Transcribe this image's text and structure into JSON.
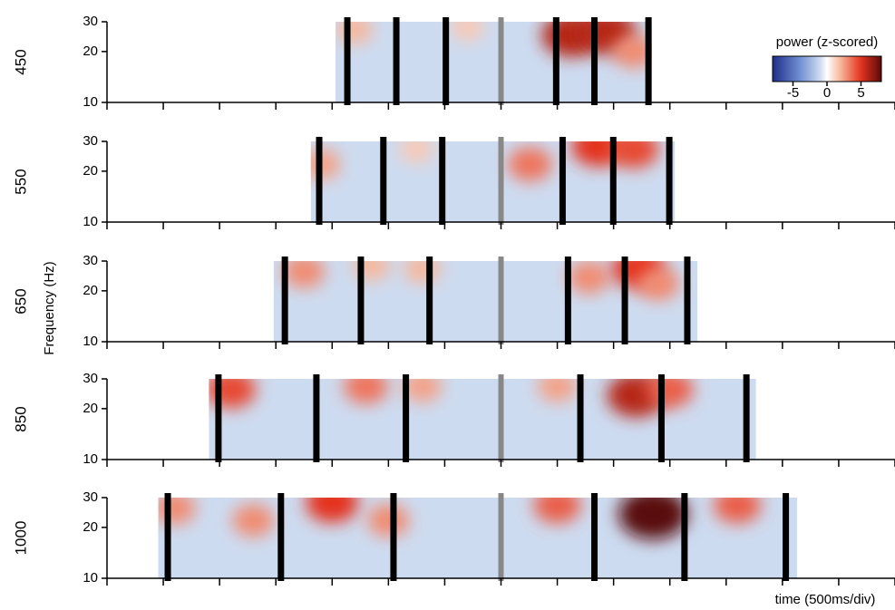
{
  "chart_data": {
    "type": "heatmap",
    "x_label": "time (500ms/div)",
    "y_label": "Frequency (Hz)",
    "colorbar_label": "power (z-scored)",
    "xlim": [
      -3500,
      3500
    ],
    "xticks": [
      -3500,
      -3000,
      -2500,
      -2000,
      -1500,
      -1000,
      -500,
      0,
      500,
      1000,
      1500,
      2000,
      2500,
      3000,
      3500
    ],
    "log_y": true,
    "clim": [
      -8,
      8
    ],
    "cticks": [
      -5,
      0,
      5
    ],
    "panels": [
      {
        "label": "450",
        "ylim": [
          10,
          30
        ],
        "yticks": [
          10,
          20,
          30
        ],
        "extent": [
          -1470,
          1340
        ],
        "center": 0,
        "markers": [
          -1365,
          -930,
          -490,
          490,
          830,
          1310
        ],
        "background_z": -1,
        "hotspots": [
          {
            "x": -1300,
            "y": 27,
            "z": 2
          },
          {
            "x": -300,
            "y": 28,
            "z": 1.5
          },
          {
            "x": 620,
            "y": 25,
            "z": 6
          },
          {
            "x": 940,
            "y": 26,
            "z": 6
          },
          {
            "x": 1180,
            "y": 20,
            "z": 3
          }
        ]
      },
      {
        "label": "550",
        "ylim": [
          10,
          30
        ],
        "yticks": [
          10,
          20,
          30
        ],
        "extent": [
          -1690,
          1545
        ],
        "center": 0,
        "markers": [
          -1615,
          -1045,
          -522,
          547,
          997,
          1495
        ],
        "background_z": -1,
        "hotspots": [
          {
            "x": -1600,
            "y": 22,
            "z": 2.5
          },
          {
            "x": -750,
            "y": 27,
            "z": 1.5
          },
          {
            "x": 257,
            "y": 22,
            "z": 3.5
          },
          {
            "x": 860,
            "y": 28,
            "z": 5
          },
          {
            "x": 1180,
            "y": 27,
            "z": 4.5
          }
        ]
      },
      {
        "label": "650",
        "ylim": [
          10,
          30
        ],
        "yticks": [
          10,
          20,
          30
        ],
        "extent": [
          -2020,
          1745
        ],
        "center": 0,
        "markers": [
          -1920,
          -1245,
          -635,
          595,
          1100,
          1655
        ],
        "background_z": -1,
        "hotspots": [
          {
            "x": -1750,
            "y": 26,
            "z": 3
          },
          {
            "x": -1150,
            "y": 28,
            "z": 2
          },
          {
            "x": -700,
            "y": 27,
            "z": 2
          },
          {
            "x": 780,
            "y": 24,
            "z": 3
          },
          {
            "x": 1220,
            "y": 27,
            "z": 5
          },
          {
            "x": 1400,
            "y": 22,
            "z": 3
          }
        ]
      },
      {
        "label": "850",
        "ylim": [
          10,
          30
        ],
        "yticks": [
          10,
          20,
          30
        ],
        "extent": [
          -2595,
          2265
        ],
        "center": 0,
        "markers": [
          -2510,
          -1640,
          -845,
          705,
          1425,
          2180
        ],
        "background_z": -1,
        "hotspots": [
          {
            "x": -2400,
            "y": 26,
            "z": 4.5
          },
          {
            "x": -1200,
            "y": 27,
            "z": 3.5
          },
          {
            "x": -700,
            "y": 27,
            "z": 2.5
          },
          {
            "x": 500,
            "y": 27,
            "z": 2.5
          },
          {
            "x": 1200,
            "y": 24,
            "z": 6
          },
          {
            "x": 1500,
            "y": 26,
            "z": 4
          }
        ]
      },
      {
        "label": "1000",
        "ylim": [
          10,
          30
        ],
        "yticks": [
          10,
          20,
          30
        ],
        "extent": [
          -3045,
          2630
        ],
        "center": 0,
        "markers": [
          -2960,
          -1955,
          -955,
          830,
          1630,
          2530
        ],
        "background_z": -1,
        "hotspots": [
          {
            "x": -2900,
            "y": 26,
            "z": 3
          },
          {
            "x": -2200,
            "y": 22,
            "z": 3
          },
          {
            "x": -1500,
            "y": 28,
            "z": 5
          },
          {
            "x": -1000,
            "y": 22,
            "z": 3
          },
          {
            "x": 500,
            "y": 27,
            "z": 4
          },
          {
            "x": 1350,
            "y": 24,
            "z": 8
          },
          {
            "x": 2100,
            "y": 27,
            "z": 4
          }
        ]
      }
    ]
  }
}
